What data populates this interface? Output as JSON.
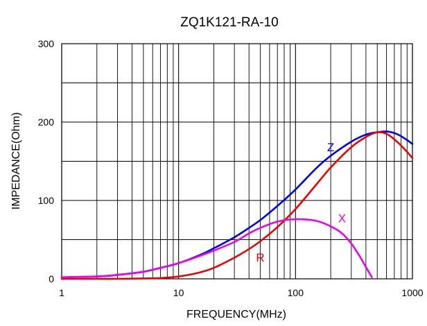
{
  "chart_data": {
    "type": "line",
    "title": "ZQ1K121-RA-10",
    "xlabel": "FREQUENCY(MHz)",
    "ylabel": "IMPEDANCE(Ohm)",
    "x_scale": "log",
    "xlim": [
      1,
      1000
    ],
    "ylim": [
      0,
      300
    ],
    "x_ticks": [
      1,
      10,
      100,
      1000
    ],
    "x_tick_labels": [
      "1",
      "10",
      "100",
      "1000"
    ],
    "y_ticks": [
      0,
      100,
      200,
      300
    ],
    "y_tick_labels": [
      "0",
      "100",
      "200",
      "300"
    ],
    "grid": true,
    "legend": "inline labels",
    "series": [
      {
        "name": "Z",
        "color": "#0000ee",
        "x": [
          1,
          2,
          3,
          5,
          7,
          10,
          15,
          20,
          30,
          40,
          50,
          70,
          100,
          150,
          200,
          300,
          400,
          500,
          600,
          700,
          800,
          900,
          1000
        ],
        "y": [
          2,
          3,
          5,
          9,
          14,
          20,
          30,
          39,
          53,
          65,
          75,
          93,
          114,
          141,
          157,
          175,
          184,
          187,
          188,
          186,
          182,
          177,
          172
        ]
      },
      {
        "name": "R",
        "color": "#ee0000",
        "x": [
          1,
          2,
          3,
          5,
          7,
          10,
          15,
          20,
          30,
          40,
          50,
          70,
          100,
          150,
          200,
          300,
          400,
          500,
          600,
          700,
          800,
          900,
          1000
        ],
        "y": [
          0,
          0,
          0,
          0.5,
          1,
          3,
          8,
          14,
          27,
          38,
          48,
          66,
          89,
          120,
          142,
          168,
          181,
          187,
          185,
          178,
          170,
          162,
          154
        ]
      },
      {
        "name": "X",
        "color": "#ee00ee",
        "x": [
          1,
          2,
          3,
          5,
          7,
          10,
          15,
          20,
          30,
          40,
          50,
          70,
          100,
          150,
          200,
          250,
          300,
          350,
          400,
          450
        ],
        "y": [
          2,
          3,
          5,
          9,
          14,
          20,
          29,
          36,
          47,
          58,
          65,
          73,
          76,
          74,
          67,
          58,
          45,
          30,
          15,
          2
        ]
      }
    ],
    "series_labels": [
      {
        "text": "Z",
        "x": 200,
        "y": 163
      },
      {
        "text": "R",
        "x": 50,
        "y": 22
      },
      {
        "text": "X",
        "x": 250,
        "y": 72
      }
    ]
  }
}
